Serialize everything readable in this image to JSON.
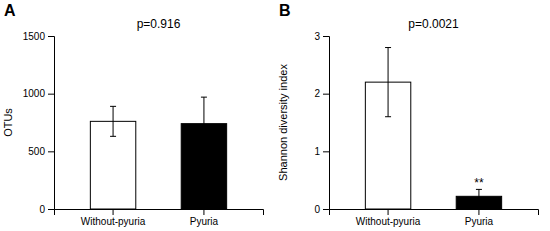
{
  "chart_data": [
    {
      "type": "bar",
      "panel_label": "A",
      "title": "p=0.916",
      "categories": [
        "Without-pyuria",
        "Pyuria"
      ],
      "values": [
        760,
        740
      ],
      "errors": [
        130,
        230
      ],
      "colors": [
        "#ffffff",
        "#000000"
      ],
      "ylabel": "OTUs",
      "ylim": [
        0,
        1500
      ],
      "yticks": [
        0,
        500,
        1000,
        1500
      ]
    },
    {
      "type": "bar",
      "panel_label": "B",
      "title": "p=0.0021",
      "categories": [
        "Without-pyuria",
        "Pyuria"
      ],
      "values": [
        2.2,
        0.22
      ],
      "errors": [
        0.6,
        0.12
      ],
      "colors": [
        "#ffffff",
        "#000000"
      ],
      "ylabel": "Shannon diversity index",
      "ylim": [
        0,
        3
      ],
      "yticks": [
        0,
        1,
        2,
        3
      ],
      "annotations": [
        {
          "text": "**",
          "category": "Pyuria"
        }
      ]
    }
  ]
}
